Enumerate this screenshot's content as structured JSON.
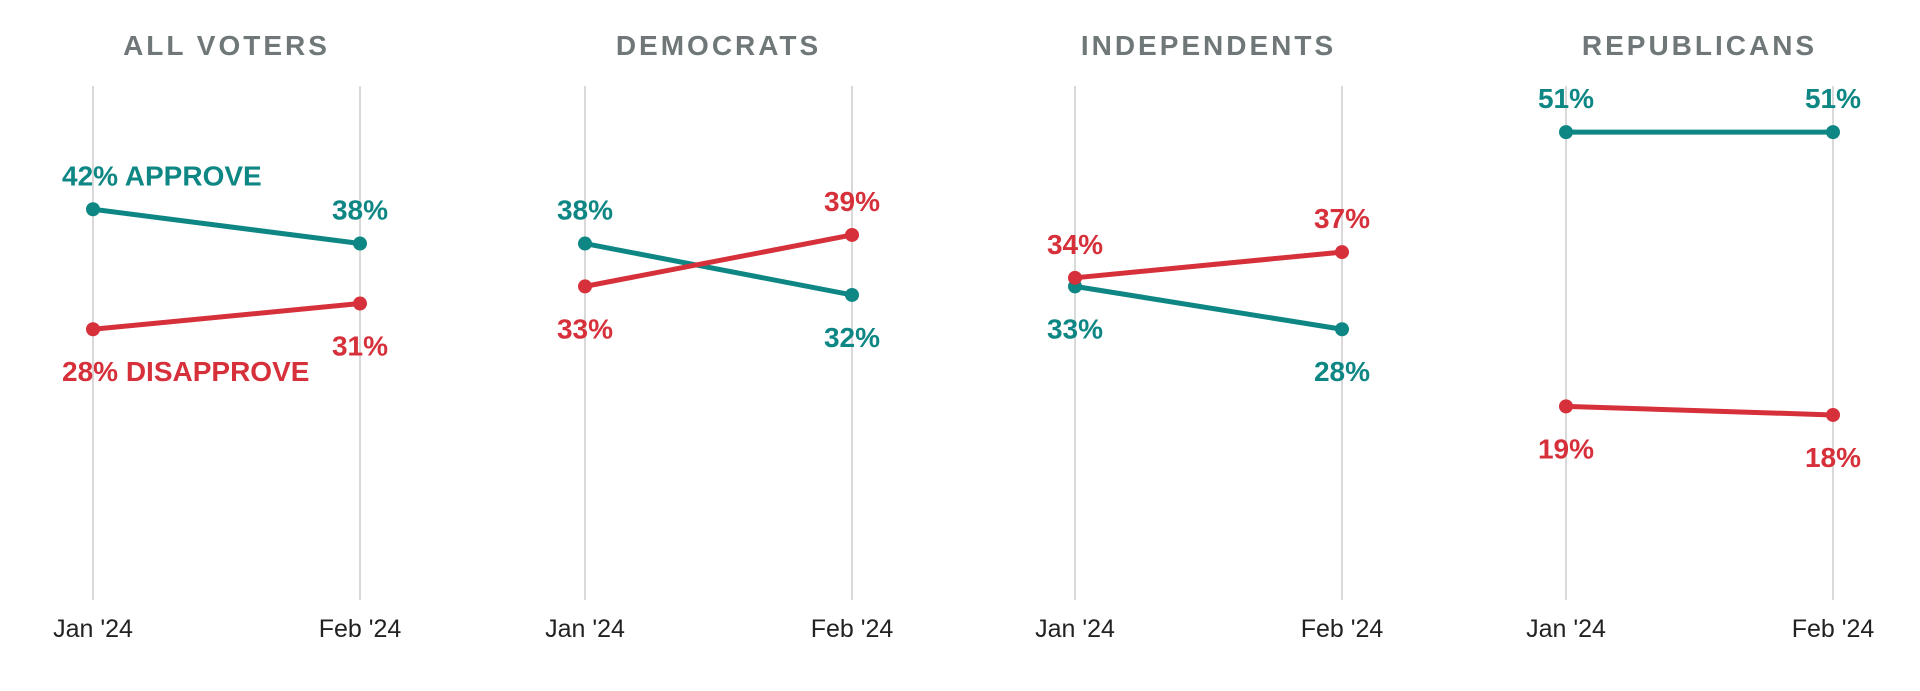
{
  "colors": {
    "approve": "#0e8784",
    "disapprove": "#d6303b",
    "title": "#6f7778",
    "grid": "#d9d9d9",
    "tick": "#222222"
  },
  "chart_data": [
    {
      "type": "line",
      "title": "ALL VOTERS",
      "categories": [
        "Jan '24",
        "Feb '24"
      ],
      "ylim": [
        0,
        60
      ],
      "series": [
        {
          "name": "APPROVE",
          "key": "approve",
          "values": [
            42,
            38
          ],
          "labels": [
            "42% APPROVE",
            "38%"
          ]
        },
        {
          "name": "DISAPPROVE",
          "key": "disapprove",
          "values": [
            28,
            31
          ],
          "labels": [
            "28% DISAPPROVE",
            "31%"
          ]
        }
      ]
    },
    {
      "type": "line",
      "title": "DEMOCRATS",
      "categories": [
        "Jan '24",
        "Feb '24"
      ],
      "ylim": [
        0,
        60
      ],
      "series": [
        {
          "key": "approve",
          "values": [
            38,
            32
          ],
          "labels": [
            "38%",
            "32%"
          ]
        },
        {
          "key": "disapprove",
          "values": [
            33,
            39
          ],
          "labels": [
            "33%",
            "39%"
          ]
        }
      ]
    },
    {
      "type": "line",
      "title": "INDEPENDENTS",
      "categories": [
        "Jan '24",
        "Feb '24"
      ],
      "ylim": [
        0,
        60
      ],
      "series": [
        {
          "key": "approve",
          "values": [
            33,
            28
          ],
          "labels": [
            "33%",
            "28%"
          ]
        },
        {
          "key": "disapprove",
          "values": [
            34,
            37
          ],
          "labels": [
            "34%",
            "37%"
          ]
        }
      ]
    },
    {
      "type": "line",
      "title": "REPUBLICANS",
      "categories": [
        "Jan '24",
        "Feb '24"
      ],
      "ylim": [
        0,
        60
      ],
      "series": [
        {
          "key": "approve",
          "values": [
            51,
            51
          ],
          "labels": [
            "51%",
            "51%"
          ]
        },
        {
          "key": "disapprove",
          "values": [
            19,
            18
          ],
          "labels": [
            "19%",
            "18%"
          ]
        }
      ]
    }
  ]
}
